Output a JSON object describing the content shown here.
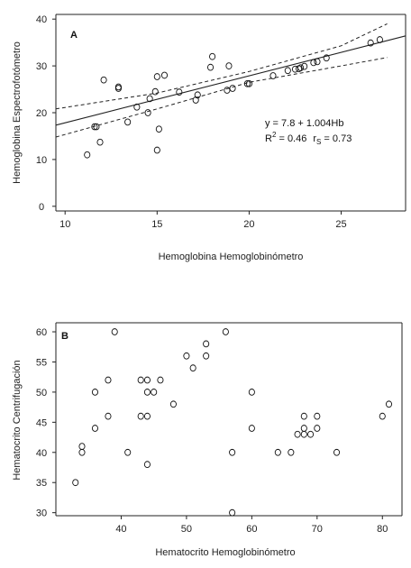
{
  "chart_data": [
    {
      "type": "scatter",
      "panel_label": "A",
      "xlabel": "Hemoglobina Hemoglobinómetro",
      "ylabel": "Hemoglobina Espectrofotómetro",
      "xlim": [
        9.5,
        28.5
      ],
      "ylim": [
        -1,
        41
      ],
      "xticks": [
        10,
        15,
        20,
        25
      ],
      "yticks": [
        0,
        10,
        20,
        30,
        40
      ],
      "grid": false,
      "legend": "none",
      "annotations": {
        "equation": "y = 7.8 + 1.004Hb",
        "r2_base": "R",
        "r2_sup": "2",
        "r2_value": " = 0.46",
        "rs_base": "r",
        "rs_sub": "S",
        "rs_value": " = 0.73"
      },
      "fit": {
        "intercept": 7.8,
        "slope": 1.004,
        "x_range": [
          9.5,
          28.5
        ]
      },
      "ci_upper": [
        [
          9.5,
          20.8
        ],
        [
          15,
          24.2
        ],
        [
          20,
          28.8
        ],
        [
          25,
          34.3
        ],
        [
          27.5,
          39.0
        ]
      ],
      "ci_lower": [
        [
          9.5,
          14.8
        ],
        [
          15,
          20.8
        ],
        [
          20,
          26.5
        ],
        [
          25,
          30.0
        ],
        [
          27.5,
          31.8
        ]
      ],
      "series": [
        {
          "points": [
            [
              11.2,
              11
            ],
            [
              11.6,
              17
            ],
            [
              11.7,
              17
            ],
            [
              11.9,
              13.7
            ],
            [
              12.1,
              27
            ],
            [
              12.9,
              25.5
            ],
            [
              12.9,
              25.2
            ],
            [
              13.4,
              18
            ],
            [
              13.9,
              21.2
            ],
            [
              14.5,
              20
            ],
            [
              14.6,
              23
            ],
            [
              14.9,
              24.5
            ],
            [
              15.0,
              27.7
            ],
            [
              15.0,
              12
            ],
            [
              15.1,
              16.5
            ],
            [
              15.4,
              28
            ],
            [
              16.2,
              24.4
            ],
            [
              17.1,
              22.7
            ],
            [
              17.2,
              23.8
            ],
            [
              17.9,
              29.7
            ],
            [
              18.0,
              32
            ],
            [
              18.8,
              24.8
            ],
            [
              18.9,
              30
            ],
            [
              19.1,
              25.2
            ],
            [
              19.9,
              26.2
            ],
            [
              20.0,
              26.2
            ],
            [
              21.3,
              27.9
            ],
            [
              22.1,
              29
            ],
            [
              22.5,
              29.3
            ],
            [
              22.7,
              29.4
            ],
            [
              22.8,
              29.6
            ],
            [
              23.0,
              29.9
            ],
            [
              23.5,
              30.7
            ],
            [
              23.7,
              30.9
            ],
            [
              24.2,
              31.7
            ],
            [
              26.6,
              34.9
            ],
            [
              27.1,
              35.6
            ]
          ]
        }
      ]
    },
    {
      "type": "scatter",
      "panel_label": "B",
      "xlabel": "Hematocrito Hemoglobinómetro",
      "ylabel": "Hematocrito Centrifugación",
      "xlim": [
        30,
        83
      ],
      "ylim": [
        29.5,
        61.5
      ],
      "xticks": [
        40,
        50,
        60,
        70,
        80
      ],
      "yticks": [
        30,
        35,
        40,
        45,
        50,
        55,
        60
      ],
      "grid": false,
      "legend": "none",
      "series": [
        {
          "points": [
            [
              33,
              35
            ],
            [
              34,
              40
            ],
            [
              34,
              41
            ],
            [
              36,
              44
            ],
            [
              36,
              50
            ],
            [
              38,
              46
            ],
            [
              38,
              52
            ],
            [
              39,
              60
            ],
            [
              41,
              40
            ],
            [
              43,
              46
            ],
            [
              43,
              52
            ],
            [
              44,
              38
            ],
            [
              44,
              46
            ],
            [
              44,
              50
            ],
            [
              44,
              52
            ],
            [
              45,
              50
            ],
            [
              46,
              52
            ],
            [
              48,
              48
            ],
            [
              50,
              56
            ],
            [
              51,
              54
            ],
            [
              53,
              56
            ],
            [
              53,
              58
            ],
            [
              56,
              60
            ],
            [
              57,
              40
            ],
            [
              57,
              30
            ],
            [
              60,
              50
            ],
            [
              60,
              44
            ],
            [
              64,
              40
            ],
            [
              66,
              40
            ],
            [
              67,
              43
            ],
            [
              68,
              46
            ],
            [
              68,
              44
            ],
            [
              68,
              43
            ],
            [
              69,
              43
            ],
            [
              70,
              46
            ],
            [
              70,
              44
            ],
            [
              73,
              40
            ],
            [
              80,
              46
            ],
            [
              81,
              48
            ]
          ]
        }
      ]
    }
  ]
}
